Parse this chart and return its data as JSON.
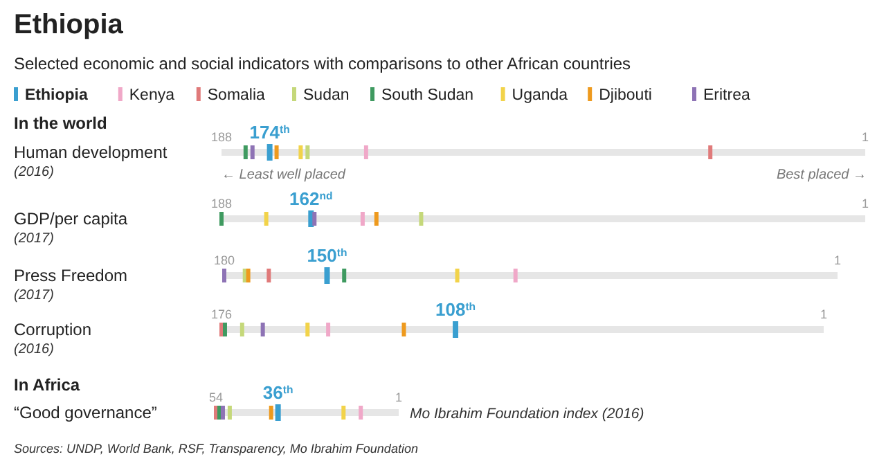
{
  "chart_data": [
    {
      "type": "other",
      "title": "Ethiopia",
      "subtitle": "Selected economic and social indicators with comparisons to other African countries"
    },
    {
      "type": "scatter",
      "orientation": "horizontal",
      "categories": [
        "Human development"
      ],
      "xlim": [
        188,
        1
      ],
      "xticks": [
        188,
        1
      ],
      "legend": "top",
      "annotations": [
        "(2016)",
        "In the world",
        "← Least well placed",
        "Best placed →"
      ],
      "series": [
        {
          "name": "Ethiopia",
          "color": "#3a9fd0",
          "values": [
            174
          ],
          "value_labels": [
            "174$^{th}$"
          ]
        },
        {
          "name": "Kenya",
          "color": "#f0a8c8",
          "values": [
            146
          ]
        },
        {
          "name": "Somalia",
          "color": "#e07a7a",
          "values": [
            46
          ]
        },
        {
          "name": "Sudan",
          "color": "#c5d87a",
          "values": [
            163
          ]
        },
        {
          "name": "South Sudan",
          "color": "#3f9a60",
          "values": [
            181
          ]
        },
        {
          "name": "Uganda",
          "color": "#f2d34a",
          "values": [
            165
          ]
        },
        {
          "name": "Djibouti",
          "color": "#ee9a1e",
          "values": [
            172
          ]
        },
        {
          "name": "Eritrea",
          "color": "#8e73b5",
          "values": [
            179
          ]
        }
      ]
    },
    {
      "type": "scatter",
      "orientation": "horizontal",
      "categories": [
        "GDP/per capita"
      ],
      "xlim": [
        188,
        1
      ],
      "xticks": [
        188,
        1
      ],
      "annotations": [
        "(2017)"
      ],
      "series": [
        {
          "color": "#3a9fd0",
          "values": [
            162
          ],
          "value_labels": [
            "162$^{nd}$"
          ]
        },
        {
          "color": "#f0a8c8",
          "values": [
            147
          ]
        },
        {
          "color": "#c5d87a",
          "values": [
            130
          ]
        },
        {
          "color": "#3f9a60",
          "values": [
            188
          ]
        },
        {
          "color": "#f2d34a",
          "values": [
            175
          ]
        },
        {
          "color": "#ee9a1e",
          "values": [
            143
          ]
        },
        {
          "color": "#8e73b5",
          "values": [
            161
          ]
        }
      ]
    },
    {
      "type": "scatter",
      "orientation": "horizontal",
      "categories": [
        "Press Freedom"
      ],
      "xlim": [
        180,
        1
      ],
      "xticks": [
        180,
        1
      ],
      "annotations": [
        "(2017)"
      ],
      "series": [
        {
          "color": "#3a9fd0",
          "values": [
            150
          ],
          "value_labels": [
            "150$^{th}$"
          ]
        },
        {
          "color": "#f0a8c8",
          "values": [
            95
          ]
        },
        {
          "color": "#e07a7a",
          "values": [
            167
          ]
        },
        {
          "color": "#c5d87a",
          "values": [
            174
          ]
        },
        {
          "color": "#3f9a60",
          "values": [
            145
          ]
        },
        {
          "color": "#f2d34a",
          "values": [
            112
          ]
        },
        {
          "color": "#ee9a1e",
          "values": [
            173
          ]
        },
        {
          "color": "#8e73b5",
          "values": [
            180
          ]
        }
      ]
    },
    {
      "type": "scatter",
      "orientation": "horizontal",
      "categories": [
        "Corruption"
      ],
      "xlim": [
        176,
        1
      ],
      "xticks": [
        176,
        1
      ],
      "annotations": [
        "(2016)"
      ],
      "series": [
        {
          "color": "#3a9fd0",
          "values": [
            108
          ],
          "value_labels": [
            "108$^{th}$"
          ]
        },
        {
          "color": "#f0a8c8",
          "values": [
            145
          ]
        },
        {
          "color": "#e07a7a",
          "values": [
            176
          ]
        },
        {
          "color": "#c5d87a",
          "values": [
            170
          ]
        },
        {
          "color": "#3f9a60",
          "values": [
            175
          ]
        },
        {
          "color": "#f2d34a",
          "values": [
            151
          ]
        },
        {
          "color": "#ee9a1e",
          "values": [
            123
          ]
        },
        {
          "color": "#8e73b5",
          "values": [
            164
          ]
        }
      ]
    },
    {
      "type": "scatter",
      "orientation": "horizontal",
      "categories": [
        "“Good governance”"
      ],
      "xlim": [
        54,
        1
      ],
      "xticks": [
        54,
        1
      ],
      "annotations": [
        "In Africa",
        "Mo Ibrahim Foundation index (2016)",
        "Sources: UNDP, World Bank, RSF, Transparency, Mo Ibrahim Foundation"
      ],
      "series": [
        {
          "color": "#3a9fd0",
          "values": [
            36
          ],
          "value_labels": [
            "36$^{th}$"
          ]
        },
        {
          "color": "#f0a8c8",
          "values": [
            12
          ]
        },
        {
          "color": "#e07a7a",
          "values": [
            54
          ]
        },
        {
          "color": "#c5d87a",
          "values": [
            50
          ]
        },
        {
          "color": "#3f9a60",
          "values": [
            53
          ]
        },
        {
          "color": "#f2d34a",
          "values": [
            17
          ]
        },
        {
          "color": "#ee9a1e",
          "values": [
            38
          ]
        },
        {
          "color": "#8e73b5",
          "values": [
            52
          ]
        }
      ]
    }
  ]
}
